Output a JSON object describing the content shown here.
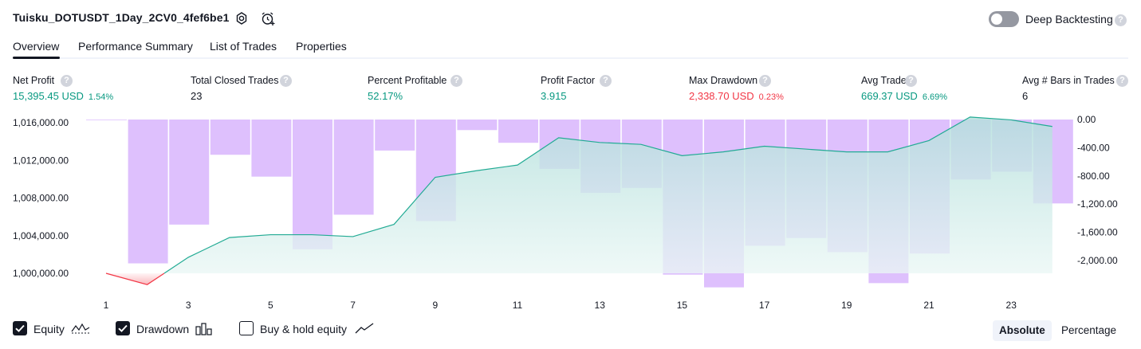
{
  "header": {
    "title": "Tuisku_DOTUSDT_1Day_2CV0_4fef6be1",
    "deep_backtesting_label": "Deep Backtesting",
    "deep_backtesting_enabled": false,
    "help_glyph": "?"
  },
  "tabs": [
    {
      "label": "Overview",
      "active": true
    },
    {
      "label": "Performance Summary",
      "active": false
    },
    {
      "label": "List of Trades",
      "active": false
    },
    {
      "label": "Properties",
      "active": false
    }
  ],
  "metrics": [
    {
      "label": "Net Profit",
      "value": "15,395.45 USD",
      "pct": "1.54%",
      "color": "green"
    },
    {
      "label": "Total Closed Trades",
      "value": "23",
      "pct": "",
      "color": "black"
    },
    {
      "label": "Percent Profitable",
      "value": "52.17%",
      "pct": "",
      "color": "green"
    },
    {
      "label": "Profit Factor",
      "value": "3.915",
      "pct": "",
      "color": "green"
    },
    {
      "label": "Max Drawdown",
      "value": "2,338.70 USD",
      "pct": "0.23%",
      "color": "red"
    },
    {
      "label": "Avg Trade",
      "value": "669.37 USD",
      "pct": "6.69%",
      "color": "green"
    },
    {
      "label": "Avg # Bars in Trades",
      "value": "6",
      "pct": "",
      "color": "black"
    }
  ],
  "chart_data": {
    "type": "line+bar",
    "x": [
      1,
      2,
      3,
      4,
      5,
      6,
      7,
      8,
      9,
      10,
      11,
      12,
      13,
      14,
      15,
      16,
      17,
      18,
      19,
      20,
      21,
      22,
      23,
      24
    ],
    "x_tick_labels": [
      "1",
      "3",
      "5",
      "7",
      "9",
      "11",
      "13",
      "15",
      "17",
      "19",
      "21",
      "23"
    ],
    "left_axis": {
      "ticks": [
        "1,016,000.00",
        "1,012,000.00",
        "1,008,000.00",
        "1,004,000.00",
        "1,000,000.00"
      ],
      "ylim": [
        998800,
        1016600
      ]
    },
    "right_axis": {
      "ticks": [
        "0.00",
        "-400.00",
        "-800.00",
        "-1,200.00",
        "-1,600.00",
        "-2,000.00"
      ],
      "ylim": [
        -2400,
        0
      ]
    },
    "series": [
      {
        "name": "Equity",
        "axis": "left",
        "values": [
          1000000,
          998800,
          1001700,
          1003800,
          1004100,
          1004100,
          1003900,
          1005200,
          1010200,
          1010900,
          1011500,
          1014400,
          1013900,
          1013700,
          1012500,
          1012900,
          1013500,
          1013200,
          1012900,
          1012900,
          1014100,
          1016600,
          1016300,
          1015600
        ]
      },
      {
        "name": "Drawdown",
        "axis": "right",
        "values": [
          0,
          -2040,
          -1490,
          -500,
          -810,
          -1840,
          -1350,
          -440,
          -1440,
          -150,
          -330,
          -700,
          -1040,
          -970,
          -2200,
          -2380,
          -1790,
          -1680,
          -1880,
          -2320,
          -1900,
          -850,
          -740,
          -1190
        ]
      }
    ],
    "colors": {
      "equity_line": "#22ab94",
      "equity_negative": "#f23645",
      "drawdown_bar": "#dcbdfd",
      "equity_fill_top": "#b2dfdb",
      "equity_fill_bottom": "#eaf7f5"
    }
  },
  "legend": [
    {
      "label": "Equity",
      "checked": true,
      "icon": "equity-icon"
    },
    {
      "label": "Drawdown",
      "checked": true,
      "icon": "drawdown-icon"
    },
    {
      "label": "Buy & hold equity",
      "checked": false,
      "icon": "buy-hold-icon"
    }
  ],
  "view_mode": {
    "absolute_label": "Absolute",
    "percentage_label": "Percentage",
    "active": "Absolute"
  }
}
